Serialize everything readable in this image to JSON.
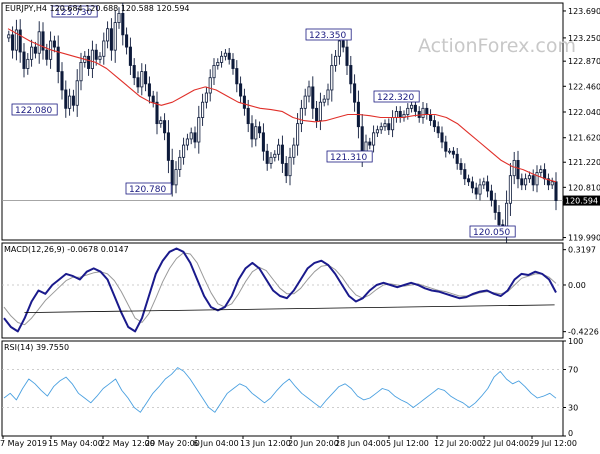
{
  "chart_data": {
    "type": "line",
    "instrument": "EURJPY,H4",
    "ohlc_header": "120.684 120.688 120.588 120.594",
    "watermark": "ActionForex.com",
    "x_labels": [
      "7 May 2019",
      "15 May 04:00",
      "22 May 12:00",
      "29 May 20:00",
      "6 Jun 04:00",
      "13 Jun 12:00",
      "20 Jun 20:00",
      "28 Jun 04:00",
      "5 Jul 12:00",
      "12 Jul 20:00",
      "22 Jul 04:00",
      "29 Jul 12:00"
    ],
    "price": {
      "yticks": [
        "123.690",
        "123.250",
        "122.870",
        "122.460",
        "122.040",
        "121.620",
        "121.220",
        "120.810",
        "120.594",
        "119.990"
      ],
      "ylim": [
        119.95,
        123.82
      ],
      "last_value": "120.594",
      "close": [
        123.25,
        123.3,
        123.05,
        123.38,
        123.02,
        122.75,
        122.9,
        123.1,
        123.0,
        123.35,
        123.05,
        122.9,
        123.2,
        123.1,
        122.7,
        122.4,
        122.1,
        122.3,
        122.15,
        122.55,
        122.85,
        122.95,
        122.75,
        123.05,
        122.9,
        122.95,
        123.2,
        123.4,
        123.05,
        123.5,
        123.65,
        123.3,
        123.1,
        122.8,
        122.6,
        122.45,
        122.7,
        122.5,
        122.3,
        122.2,
        121.85,
        121.9,
        121.7,
        121.25,
        120.85,
        121.1,
        121.3,
        121.5,
        121.6,
        121.7,
        121.55,
        121.95,
        122.2,
        122.35,
        122.6,
        122.8,
        122.85,
        122.95,
        123.0,
        122.9,
        122.75,
        122.5,
        122.3,
        122.1,
        121.85,
        121.6,
        121.8,
        121.7,
        121.4,
        121.2,
        121.3,
        121.35,
        121.5,
        121.2,
        121.0,
        121.3,
        121.5,
        121.85,
        122.1,
        122.3,
        122.45,
        122.1,
        121.9,
        122.2,
        122.25,
        122.4,
        122.8,
        122.95,
        123.2,
        123.1,
        122.8,
        122.5,
        122.2,
        121.8,
        121.35,
        121.55,
        121.5,
        121.7,
        121.75,
        121.8,
        121.85,
        121.75,
        121.95,
        122.05,
        121.95,
        122.0,
        122.1,
        122.15,
        122.05,
        121.95,
        122.1,
        122.0,
        121.9,
        121.8,
        121.7,
        121.55,
        121.4,
        121.4,
        121.35,
        121.2,
        121.1,
        120.95,
        120.9,
        120.8,
        120.7,
        120.85,
        120.9,
        120.75,
        120.6,
        120.4,
        120.2,
        120.1,
        120.55,
        121.0,
        121.25,
        120.95,
        120.85,
        120.95,
        121.0,
        120.85,
        121.05,
        121.1,
        120.95,
        120.85,
        120.9,
        120.594
      ],
      "sma": [
        123.4,
        123.3,
        123.2,
        123.12,
        123.05,
        123.0,
        122.95,
        122.9,
        122.85,
        122.75,
        122.6,
        122.45,
        122.3,
        122.2,
        122.15,
        122.2,
        122.3,
        122.4,
        122.45,
        122.4,
        122.3,
        122.2,
        122.15,
        122.1,
        122.08,
        122.05,
        121.95,
        121.9,
        121.88,
        121.9,
        121.95,
        122.0,
        122.0,
        121.98,
        121.95,
        121.95,
        121.95,
        121.98,
        122.0,
        122.0,
        121.95,
        121.85,
        121.7,
        121.55,
        121.4,
        121.25,
        121.15,
        121.1,
        121.02,
        120.95,
        120.9
      ],
      "annotations": [
        {
          "label": "123.730",
          "value": 123.73
        },
        {
          "label": "122.080",
          "value": 122.08
        },
        {
          "label": "120.780",
          "value": 120.78
        },
        {
          "label": "123.350",
          "value": 123.35
        },
        {
          "label": "121.310",
          "value": 121.31
        },
        {
          "label": "122.320",
          "value": 122.32
        },
        {
          "label": "120.050",
          "value": 120.05
        }
      ]
    },
    "macd": {
      "label": "MACD(12,26,9) -0.0678 0.0147",
      "yticks": [
        "0.3197",
        "0.00",
        "-0.4226"
      ],
      "ylim": [
        -0.48,
        0.38
      ],
      "main": [
        -0.3,
        -0.38,
        -0.42,
        -0.3,
        -0.15,
        -0.05,
        -0.08,
        0.0,
        0.05,
        0.1,
        0.08,
        0.05,
        0.12,
        0.15,
        0.12,
        0.05,
        -0.1,
        -0.25,
        -0.38,
        -0.42,
        -0.3,
        -0.1,
        0.1,
        0.22,
        0.3,
        0.33,
        0.3,
        0.2,
        0.05,
        -0.1,
        -0.2,
        -0.23,
        -0.2,
        -0.1,
        0.05,
        0.15,
        0.2,
        0.15,
        0.05,
        -0.05,
        -0.1,
        -0.12,
        -0.05,
        0.05,
        0.15,
        0.2,
        0.22,
        0.18,
        0.1,
        0.0,
        -0.1,
        -0.15,
        -0.12,
        -0.05,
        0.0,
        0.02,
        0.0,
        -0.02,
        0.0,
        0.02,
        0.0,
        -0.03,
        -0.05,
        -0.06,
        -0.08,
        -0.1,
        -0.12,
        -0.11,
        -0.08,
        -0.06,
        -0.05,
        -0.08,
        -0.1,
        -0.05,
        0.05,
        0.1,
        0.09,
        0.12,
        0.1,
        0.05,
        -0.0678
      ],
      "signal": [
        -0.2,
        -0.28,
        -0.34,
        -0.36,
        -0.3,
        -0.22,
        -0.14,
        -0.08,
        -0.02,
        0.04,
        0.07,
        0.07,
        0.09,
        0.11,
        0.12,
        0.1,
        0.04,
        -0.06,
        -0.18,
        -0.3,
        -0.34,
        -0.26,
        -0.12,
        0.03,
        0.15,
        0.24,
        0.29,
        0.28,
        0.2,
        0.06,
        -0.07,
        -0.17,
        -0.2,
        -0.17,
        -0.08,
        0.03,
        0.12,
        0.16,
        0.13,
        0.05,
        -0.03,
        -0.08,
        -0.08,
        -0.03,
        0.05,
        0.12,
        0.17,
        0.18,
        0.14,
        0.07,
        -0.02,
        -0.09,
        -0.12,
        -0.09,
        -0.04,
        0.0,
        0.01,
        0.0,
        -0.01,
        0.0,
        0.01,
        -0.01,
        -0.03,
        -0.05,
        -0.06,
        -0.08,
        -0.1,
        -0.1,
        -0.09,
        -0.07,
        -0.06,
        -0.07,
        -0.08,
        -0.06,
        0.0,
        0.06,
        0.08,
        0.1,
        0.1,
        0.07,
        0.0147
      ],
      "trendline": [
        [
          0.04,
          -0.25
        ],
        [
          0.985,
          -0.18
        ]
      ]
    },
    "rsi": {
      "label": "RSI(14) 39.7550",
      "yticks": [
        "100",
        "70",
        "30",
        "0"
      ],
      "ylim": [
        0,
        100
      ],
      "values": [
        40,
        45,
        38,
        50,
        60,
        55,
        48,
        42,
        52,
        58,
        62,
        55,
        45,
        40,
        35,
        42,
        50,
        55,
        60,
        48,
        40,
        30,
        25,
        35,
        45,
        52,
        60,
        65,
        72,
        68,
        60,
        50,
        40,
        30,
        25,
        35,
        45,
        50,
        55,
        52,
        45,
        40,
        35,
        40,
        48,
        55,
        60,
        52,
        45,
        40,
        35,
        30,
        38,
        45,
        52,
        55,
        50,
        42,
        38,
        40,
        45,
        50,
        48,
        42,
        38,
        35,
        30,
        35,
        40,
        45,
        50,
        48,
        42,
        38,
        35,
        30,
        35,
        42,
        50,
        62,
        68,
        60,
        55,
        58,
        52,
        45,
        40,
        42,
        45,
        39.755
      ]
    }
  }
}
